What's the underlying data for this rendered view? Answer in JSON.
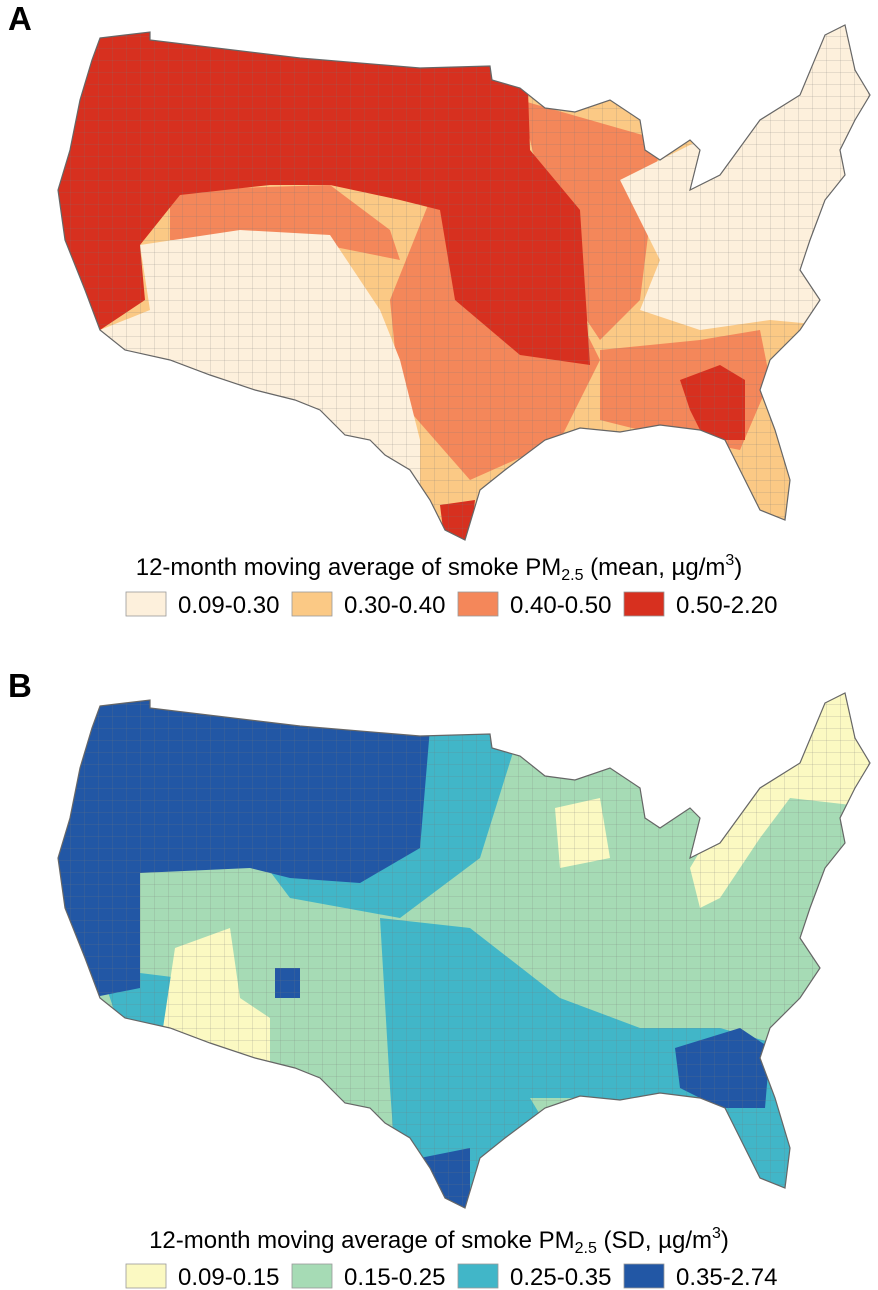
{
  "panels": [
    {
      "label": "A",
      "legend": {
        "title": {
          "text": "12-month moving average of smoke PM",
          "subscript": "2.5",
          "suffix": " (mean, µg/m",
          "superscript": "3",
          "close": ")"
        },
        "items": [
          {
            "label": "0.09-0.30",
            "color": "#fdf0dc"
          },
          {
            "label": "0.30-0.40",
            "color": "#fbc985"
          },
          {
            "label": "0.40-0.50",
            "color": "#f4875a"
          },
          {
            "label": "0.50-2.20",
            "color": "#d7301f"
          }
        ]
      }
    },
    {
      "label": "B",
      "legend": {
        "title": {
          "text": "12-month moving average of smoke PM",
          "subscript": "2.5",
          "suffix": " (SD, µg/m",
          "superscript": "3",
          "close": ")"
        },
        "items": [
          {
            "label": "0.09-0.15",
            "color": "#fbf9c2"
          },
          {
            "label": "0.15-0.25",
            "color": "#a6dbb5"
          },
          {
            "label": "0.25-0.35",
            "color": "#41b6c8"
          },
          {
            "label": "0.35-2.74",
            "color": "#2257a5"
          }
        ]
      }
    }
  ]
}
